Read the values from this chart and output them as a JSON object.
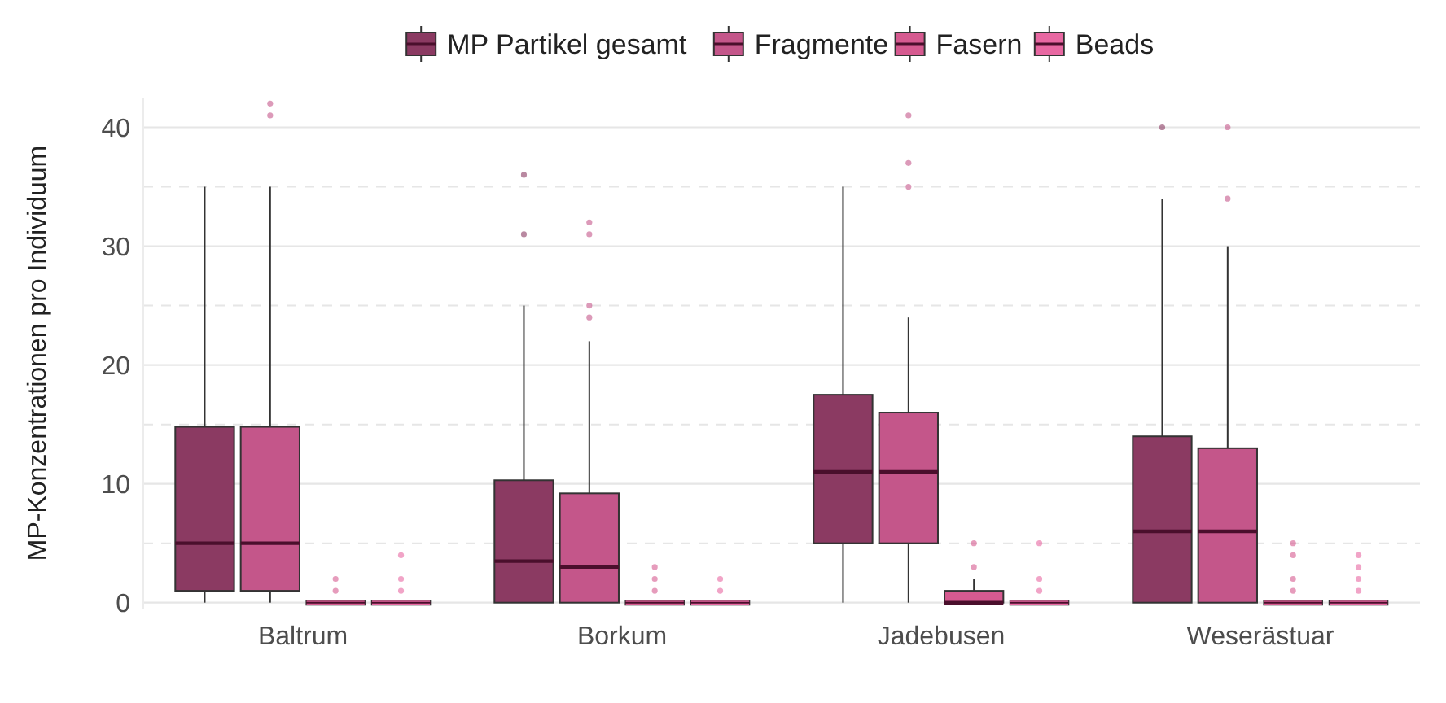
{
  "chart_data": {
    "type": "box",
    "ylabel": "MP-Konzentrationen pro Individuum",
    "categories": [
      "Baltrum",
      "Borkum",
      "Jadebusen",
      "Weserästuar"
    ],
    "ylim": [
      -0.5,
      42.5
    ],
    "yticks": [
      0,
      {
        "value": 5,
        "label": null
      },
      10,
      {
        "value": 15,
        "label": null
      },
      20,
      {
        "value": 25,
        "label": null
      },
      30,
      {
        "value": 35,
        "label": null
      },
      40
    ],
    "grid": "y",
    "legend": "top",
    "series": [
      {
        "name": "MP Partikel gesamt",
        "color": "#8b3a62",
        "boxes": [
          {
            "low": 0,
            "q1": 1,
            "median": 5,
            "q3": 14.8,
            "high": 35
          },
          {
            "low": 0,
            "q1": 0,
            "median": 3.5,
            "q3": 10.3,
            "high": 25,
            "outliers": [
              31,
              36
            ]
          },
          {
            "low": 0,
            "q1": 5,
            "median": 11,
            "q3": 17.5,
            "high": 35
          },
          {
            "low": 0,
            "q1": 0,
            "median": 6,
            "q3": 14,
            "high": 34,
            "outliers": [
              40
            ]
          }
        ]
      },
      {
        "name": "Fragmente",
        "color": "#c4568a",
        "boxes": [
          {
            "low": 0,
            "q1": 1,
            "median": 5,
            "q3": 14.8,
            "high": 35,
            "outliers": [
              41,
              42
            ]
          },
          {
            "low": 0,
            "q1": 0,
            "median": 3,
            "q3": 9.2,
            "high": 22,
            "outliers": [
              24,
              25,
              31,
              32
            ]
          },
          {
            "low": 0,
            "q1": 5,
            "median": 11,
            "q3": 16,
            "high": 24,
            "outliers": [
              35,
              37,
              41
            ]
          },
          {
            "low": 0,
            "q1": 0,
            "median": 6,
            "q3": 13,
            "high": 30,
            "outliers": [
              34,
              40
            ]
          }
        ]
      },
      {
        "name": "Fasern",
        "color": "#d65a90",
        "boxes": [
          {
            "low": 0,
            "q1": 0,
            "median": 0,
            "q3": 0,
            "high": 0,
            "outliers": [
              1,
              2
            ]
          },
          {
            "low": 0,
            "q1": 0,
            "median": 0,
            "q3": 0,
            "high": 0,
            "outliers": [
              1,
              2,
              3
            ]
          },
          {
            "low": 0,
            "q1": 0,
            "median": 0,
            "q3": 1,
            "high": 2,
            "outliers": [
              3,
              5
            ]
          },
          {
            "low": 0,
            "q1": 0,
            "median": 0,
            "q3": 0,
            "high": 0,
            "outliers": [
              1,
              2,
              4,
              5
            ]
          }
        ]
      },
      {
        "name": "Beads",
        "color": "#e868a2",
        "boxes": [
          {
            "low": 0,
            "q1": 0,
            "median": 0,
            "q3": 0,
            "high": 0,
            "outliers": [
              1,
              2,
              4
            ]
          },
          {
            "low": 0,
            "q1": 0,
            "median": 0,
            "q3": 0,
            "high": 0,
            "outliers": [
              1,
              2
            ]
          },
          {
            "low": 0,
            "q1": 0,
            "median": 0,
            "q3": 0,
            "high": 0,
            "outliers": [
              1,
              2,
              5
            ]
          },
          {
            "low": 0,
            "q1": 0,
            "median": 0,
            "q3": 0,
            "high": 0,
            "outliers": [
              1,
              2,
              3,
              4
            ]
          }
        ]
      }
    ]
  }
}
